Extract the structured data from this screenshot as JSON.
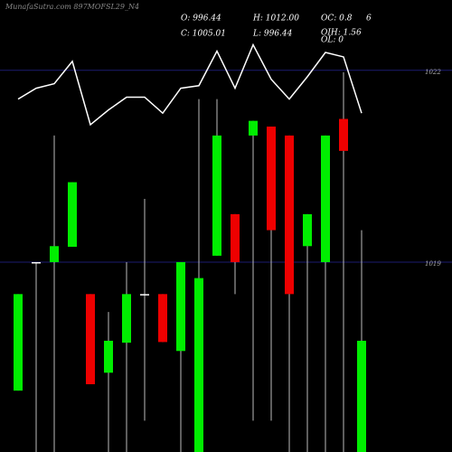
{
  "chart_data": {
    "type": "candlestick",
    "title": "MunafaSutra.com 897MOFSL29_N4",
    "annotations": [
      "O: 996.44",
      "H: 1012.00",
      "OC: 0.8",
      "6",
      "C: 1005.01",
      "L: 996.44",
      "OIH: 1.56",
      "OL: 0"
    ],
    "categories": [
      null,
      null,
      null,
      null,
      null,
      null,
      null,
      null,
      null,
      null,
      null,
      null,
      null,
      null,
      null,
      null,
      null,
      null,
      null,
      null
    ],
    "open": [
      1016.99,
      1019.0,
      1019.0,
      1019.24,
      1018.5,
      1017.27,
      1017.74,
      1018.5,
      1018.5,
      1017.61,
      1016.03,
      1019.1,
      1019.75,
      1020.98,
      1021.12,
      1020.98,
      1019.25,
      1019.0,
      1021.24,
      1016.03
    ],
    "high": [
      1018.5,
      1019.0,
      1020.98,
      1020.25,
      1018.5,
      1018.22,
      1019.0,
      1019.99,
      1018.5,
      1019.0,
      1021.55,
      1021.55,
      1019.75,
      1021.21,
      1021.12,
      1020.98,
      1019.75,
      1020.98,
      1021.97,
      1019.5
    ],
    "low": [
      1016.99,
      1016.03,
      1016.03,
      1019.24,
      1017.09,
      1016.03,
      1016.03,
      1016.52,
      1017.75,
      1016.03,
      1016.03,
      1019.1,
      1018.5,
      1016.52,
      1016.52,
      1016.03,
      1016.03,
      1016.03,
      1016.03,
      1016.03
    ],
    "close": [
      1018.5,
      1019.0,
      1019.25,
      1020.25,
      1017.09,
      1017.77,
      1018.5,
      1018.5,
      1017.75,
      1019.0,
      1018.75,
      1020.98,
      1019.0,
      1021.21,
      1019.5,
      1018.5,
      1019.75,
      1020.98,
      1020.74,
      1017.77
    ],
    "line": {
      "color": "#ffffff",
      "values": [
        1021.55,
        1021.72,
        1021.79,
        1022.14,
        1021.15,
        1021.38,
        1021.58,
        1021.58,
        1021.33,
        1021.72,
        1021.76,
        1022.3,
        1021.72,
        1022.4,
        1021.86,
        1021.55,
        1021.9,
        1022.28,
        1022.21,
        1021.33
      ]
    },
    "up_color": "#00ee00",
    "down_color": "#ee0000",
    "ylim": [
      1016.03,
      1023.1
    ],
    "yticks": [
      1019,
      1022
    ],
    "grid": true
  }
}
